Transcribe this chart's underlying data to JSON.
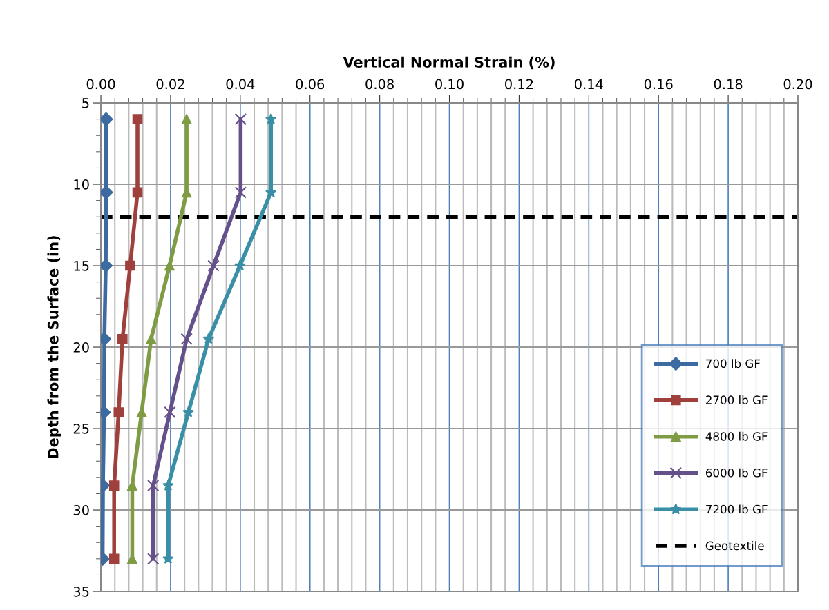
{
  "chart_data": {
    "type": "line",
    "xlabel": "Vertical Normal Strain (%)",
    "ylabel": "Depth from the Surface (in)",
    "xlim": [
      0,
      0.2
    ],
    "xticks": [
      {
        "value": 0,
        "label": "0.00"
      },
      {
        "value": 0.02,
        "label": "0.02"
      },
      {
        "value": 0.04,
        "label": "0.04"
      },
      {
        "value": 0.06,
        "label": "0.06"
      },
      {
        "value": 0.08,
        "label": "0.08"
      },
      {
        "value": 0.1,
        "label": "0.10"
      },
      {
        "value": 0.12,
        "label": "0.12"
      },
      {
        "value": 0.14,
        "label": "0.14"
      },
      {
        "value": 0.16,
        "label": "0.16"
      },
      {
        "value": 0.18,
        "label": "0.18"
      },
      {
        "value": 0.2,
        "label": "0.20"
      }
    ],
    "ylim": [
      35,
      5
    ],
    "yticks": [
      5,
      10,
      15,
      20,
      25,
      30,
      35
    ],
    "grid": true,
    "legend": "bottom right",
    "series": [
      {
        "name": "700 lb GF",
        "color": "#3c6ba1",
        "marker": "diamond",
        "x": [
          0.0015,
          0.0015,
          0.0014,
          0.001,
          0.0009,
          0.0006,
          0.0005
        ],
        "values": [
          6,
          10.5,
          15,
          19.5,
          24,
          28.5,
          33
        ]
      },
      {
        "name": "2700 lb GF",
        "color": "#a0403c",
        "marker": "square",
        "x": [
          0.0105,
          0.0105,
          0.0084,
          0.0062,
          0.0051,
          0.0038,
          0.0038
        ],
        "values": [
          6,
          10.5,
          15,
          19.5,
          24,
          28.5,
          33
        ]
      },
      {
        "name": "4800 lb GF",
        "color": "#7f9c44",
        "marker": "triangle",
        "x": [
          0.0246,
          0.0246,
          0.0197,
          0.0144,
          0.0117,
          0.009,
          0.009
        ],
        "values": [
          6,
          10.5,
          15,
          19.5,
          24,
          28.5,
          33
        ]
      },
      {
        "name": "6000 lb GF",
        "color": "#64508a",
        "marker": "cross",
        "x": [
          0.0401,
          0.0401,
          0.0323,
          0.0246,
          0.0198,
          0.015,
          0.015
        ],
        "values": [
          6,
          10.5,
          15,
          19.5,
          24,
          28.5,
          33
        ]
      },
      {
        "name": "7200 lb GF",
        "color": "#388fa6",
        "marker": "star",
        "x": [
          0.0488,
          0.0488,
          0.0399,
          0.0309,
          0.0251,
          0.0193,
          0.0193
        ],
        "values": [
          6,
          10.5,
          15,
          19.5,
          24,
          28.5,
          33
        ]
      }
    ],
    "ref_lines": [
      {
        "axis": "y",
        "value": 12,
        "label": "Geotextile",
        "color": "#000000",
        "line_style": "dashed"
      }
    ]
  }
}
